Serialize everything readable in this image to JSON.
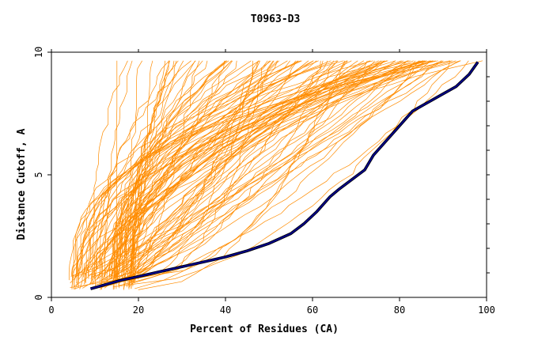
{
  "chart_data": {
    "type": "line",
    "title": "T0963-D3",
    "xlabel": "Percent of Residues (CA)",
    "ylabel": "Distance Cutoff, A",
    "xlim": [
      0,
      100
    ],
    "ylim": [
      0,
      10
    ],
    "xticks": [
      "0",
      "20",
      "40",
      "60",
      "80",
      "100"
    ],
    "yticks": [
      "0",
      "5",
      "10"
    ],
    "grid": false,
    "legend": "none",
    "colors": {
      "highlight": "#00008b",
      "background_models": "#ff8c00",
      "highlight_outline": "#000000"
    },
    "highlighted_series": {
      "x": [
        9,
        12,
        16,
        20,
        25,
        30,
        35,
        40,
        45,
        50,
        55,
        58,
        61,
        64,
        66,
        69,
        72,
        74,
        76,
        78,
        80,
        83,
        86,
        90,
        93,
        96,
        98
      ],
      "y": [
        0.35,
        0.5,
        0.7,
        0.85,
        1.05,
        1.25,
        1.45,
        1.65,
        1.9,
        2.2,
        2.6,
        3.0,
        3.5,
        4.1,
        4.4,
        4.8,
        5.2,
        5.8,
        6.2,
        6.6,
        7.0,
        7.6,
        7.9,
        8.3,
        8.6,
        9.1,
        9.6
      ]
    },
    "background_series_count": 120
  }
}
